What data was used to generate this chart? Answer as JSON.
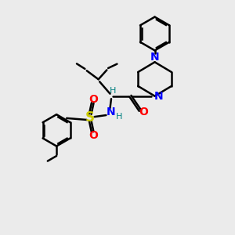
{
  "bg_color": "#ebebeb",
  "bond_color": "#000000",
  "bond_width": 1.8,
  "atom_colors": {
    "N": "#0000ff",
    "O": "#ff0000",
    "S": "#cccc00",
    "C": "#000000",
    "H": "#008080"
  },
  "font_size_atom": 10,
  "font_size_small": 8
}
